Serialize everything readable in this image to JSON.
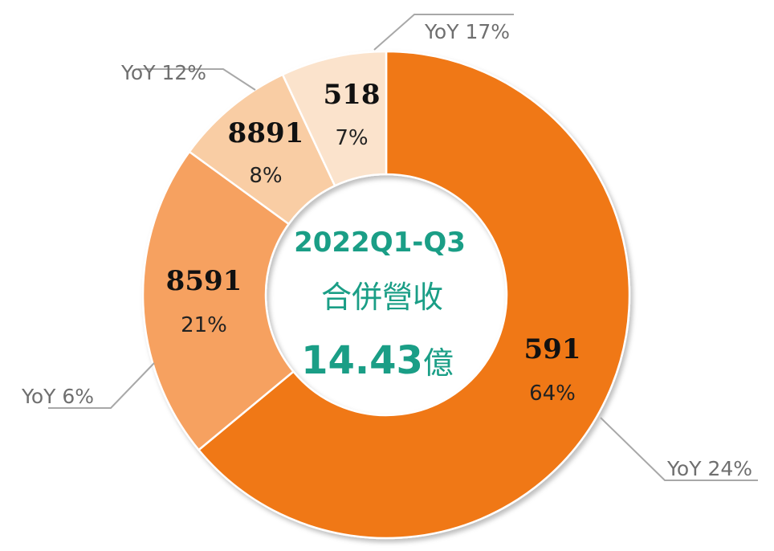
{
  "chart_data": {
    "type": "pie",
    "variant": "donut",
    "slices": [
      {
        "name": "591",
        "percent": 64,
        "pct_label": "64%",
        "yoy": "YoY 24%",
        "color": "#F07818"
      },
      {
        "name": "8591",
        "percent": 21,
        "pct_label": "21%",
        "yoy": "YoY 6%",
        "color": "#F6A160"
      },
      {
        "name": "8891",
        "percent": 8,
        "pct_label": "8%",
        "yoy": "YoY 12%",
        "color": "#F9CDA4"
      },
      {
        "name": "518",
        "percent": 7,
        "pct_label": "7%",
        "yoy": "YoY 17%",
        "color": "#FBE3CC"
      }
    ],
    "center": {
      "period": "2022Q1-Q3",
      "label": "合併營收",
      "value": "14.43",
      "unit": "億",
      "color": "#1A9E86"
    }
  }
}
